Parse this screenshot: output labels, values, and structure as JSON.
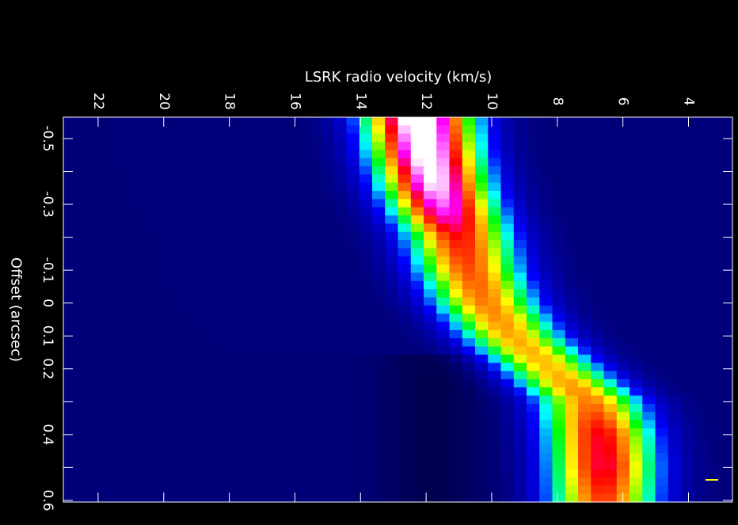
{
  "chart_data": {
    "type": "heatmap",
    "title": "",
    "xlabel": "LSRK radio velocity  (km/s)",
    "ylabel": "Offset (arcsec)",
    "x_axis": {
      "label": "LSRK radio velocity  (km/s)",
      "range": [
        23.06,
        2.66
      ],
      "ticks": [
        22,
        20,
        18,
        16,
        14,
        12,
        10,
        8,
        6,
        4
      ],
      "tick_labels": [
        "22",
        "20",
        "18",
        "16",
        "14",
        "12",
        "10",
        "8",
        "6",
        "4"
      ],
      "orientation": "horizontal, velocity decreasing to the right",
      "label_rotation": "90"
    },
    "y_axis": {
      "label": "Offset (arcsec)",
      "range": [
        -0.565,
        0.605
      ],
      "ticks": [
        -0.5,
        -0.3,
        -0.1,
        0,
        0.1,
        0.2,
        0.4,
        0.6
      ],
      "tick_labels": [
        "-0.5",
        "-0.3",
        "-0.1",
        "0",
        "0.1",
        "0.2",
        "0.4",
        "0.6"
      ],
      "minor_ticks": [
        -0.4,
        -0.2,
        0.3,
        0.5
      ],
      "label_rotation": "90"
    },
    "colormap": [
      "#000000",
      "#000096",
      "#0000ff",
      "#00ffff",
      "#00ff00",
      "#ffff00",
      "#ff8000",
      "#ff0000",
      "#ff00ff",
      "#ffffff"
    ],
    "grid": false,
    "legend": "none",
    "emission": {
      "description_of_structure": "ridge of emission running from ~12.2 km/s at offset -0.55 to ~6.5 km/s at offset 0.6",
      "ridge": [
        {
          "offset": -0.55,
          "velocity": 12.2,
          "peak": 1.0
        },
        {
          "offset": -0.45,
          "velocity": 12.0,
          "peak": 0.96
        },
        {
          "offset": -0.35,
          "velocity": 11.7,
          "peak": 0.9
        },
        {
          "offset": -0.28,
          "velocity": 11.4,
          "peak": 0.82
        },
        {
          "offset": -0.2,
          "velocity": 11.0,
          "peak": 0.68
        },
        {
          "offset": -0.1,
          "velocity": 10.7,
          "peak": 0.62
        },
        {
          "offset": 0.0,
          "velocity": 10.2,
          "peak": 0.58
        },
        {
          "offset": 0.1,
          "velocity": 9.4,
          "peak": 0.54
        },
        {
          "offset": 0.2,
          "velocity": 8.2,
          "peak": 0.52
        },
        {
          "offset": 0.3,
          "velocity": 7.0,
          "peak": 0.58
        },
        {
          "offset": 0.4,
          "velocity": 6.7,
          "peak": 0.7
        },
        {
          "offset": 0.5,
          "velocity": 6.6,
          "peak": 0.72
        },
        {
          "offset": 0.6,
          "velocity": 6.6,
          "peak": 0.64
        }
      ],
      "velocity_width": 1.5,
      "background_level": 0.09
    },
    "beam_marker_color": "#ffff00"
  }
}
